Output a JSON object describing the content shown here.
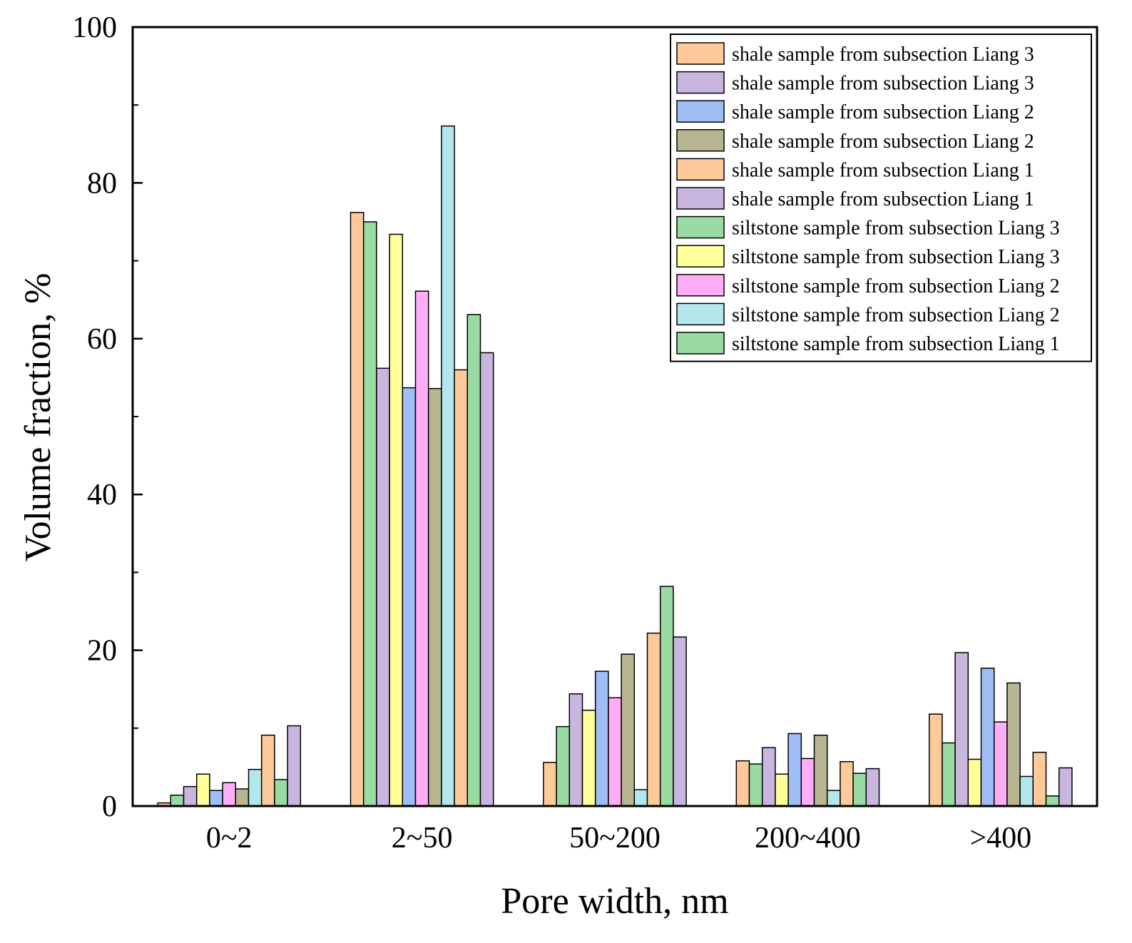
{
  "chart_data": {
    "type": "bar",
    "title": "",
    "xlabel": "Pore width, nm",
    "ylabel": "Volume fraction, %",
    "ylim": [
      0,
      100
    ],
    "yticks": [
      "0",
      "20",
      "40",
      "60",
      "80",
      "100"
    ],
    "categories": [
      "0~2",
      "2~50",
      "50~200",
      "200~400",
      ">400"
    ],
    "grid": false,
    "legend_position": "top-right",
    "series": [
      {
        "name": "shale sample from subsection Liang 3",
        "color": "#FFCA9A",
        "values": [
          0.4,
          76.2,
          5.6,
          5.8,
          11.8
        ]
      },
      {
        "name": "siltstone sample from subsection Liang 3",
        "color": "#99DBA3",
        "values": [
          1.4,
          75.0,
          10.2,
          5.4,
          8.1
        ]
      },
      {
        "name": "shale sample from subsection Liang 3",
        "color": "#C8B6DE",
        "values": [
          2.5,
          56.2,
          14.4,
          7.5,
          19.7
        ]
      },
      {
        "name": "siltstone sample from subsection Liang 3",
        "color": "#FFFF9A",
        "values": [
          4.1,
          73.4,
          12.3,
          4.1,
          6.0
        ]
      },
      {
        "name": "shale sample from subsection Liang 2",
        "color": "#A0BEF6",
        "values": [
          2.0,
          53.7,
          17.3,
          9.3,
          17.7
        ]
      },
      {
        "name": "siltstone sample from subsection Liang 2",
        "color": "#FFADF6",
        "values": [
          3.0,
          66.1,
          13.9,
          6.1,
          10.8
        ]
      },
      {
        "name": "shale sample from subsection Liang 2",
        "color": "#B8B593",
        "values": [
          2.2,
          53.6,
          19.5,
          9.1,
          15.8
        ]
      },
      {
        "name": "siltstone sample from subsection Liang 2",
        "color": "#B3E7EB",
        "values": [
          4.7,
          87.3,
          2.1,
          2.0,
          3.8
        ]
      },
      {
        "name": "shale sample from subsection Liang 1",
        "color": "#FFCA9A",
        "values": [
          9.1,
          56.0,
          22.2,
          5.7,
          6.9
        ]
      },
      {
        "name": "siltstone sample from subsection Liang 1",
        "color": "#99DBA3",
        "values": [
          3.4,
          63.1,
          28.2,
          4.2,
          1.3
        ]
      },
      {
        "name": "shale sample from subsection Liang 1",
        "color": "#C8B6DE",
        "values": [
          10.3,
          58.2,
          21.7,
          4.8,
          4.9
        ]
      }
    ],
    "legend": [
      {
        "label": "shale sample from subsection Liang 3",
        "color": "#FFCA9A"
      },
      {
        "label": "shale sample from subsection Liang 3",
        "color": "#C8B6DE"
      },
      {
        "label": "shale sample from subsection Liang 2",
        "color": "#A0BEF6"
      },
      {
        "label": "shale sample from subsection Liang 2",
        "color": "#B8B593"
      },
      {
        "label": "shale sample from subsection Liang 1",
        "color": "#FFCA9A"
      },
      {
        "label": "shale sample from subsection Liang 1",
        "color": "#C8B6DE"
      },
      {
        "label": "siltstone sample from subsection Liang 3",
        "color": "#99DBA3"
      },
      {
        "label": "siltstone sample from subsection Liang 3",
        "color": "#FFFF9A"
      },
      {
        "label": "siltstone sample from subsection Liang 2",
        "color": "#FFADF6"
      },
      {
        "label": "siltstone sample from subsection Liang 2",
        "color": "#B3E7EB"
      },
      {
        "label": "siltstone sample from subsection Liang 1",
        "color": "#99DBA3"
      }
    ]
  }
}
